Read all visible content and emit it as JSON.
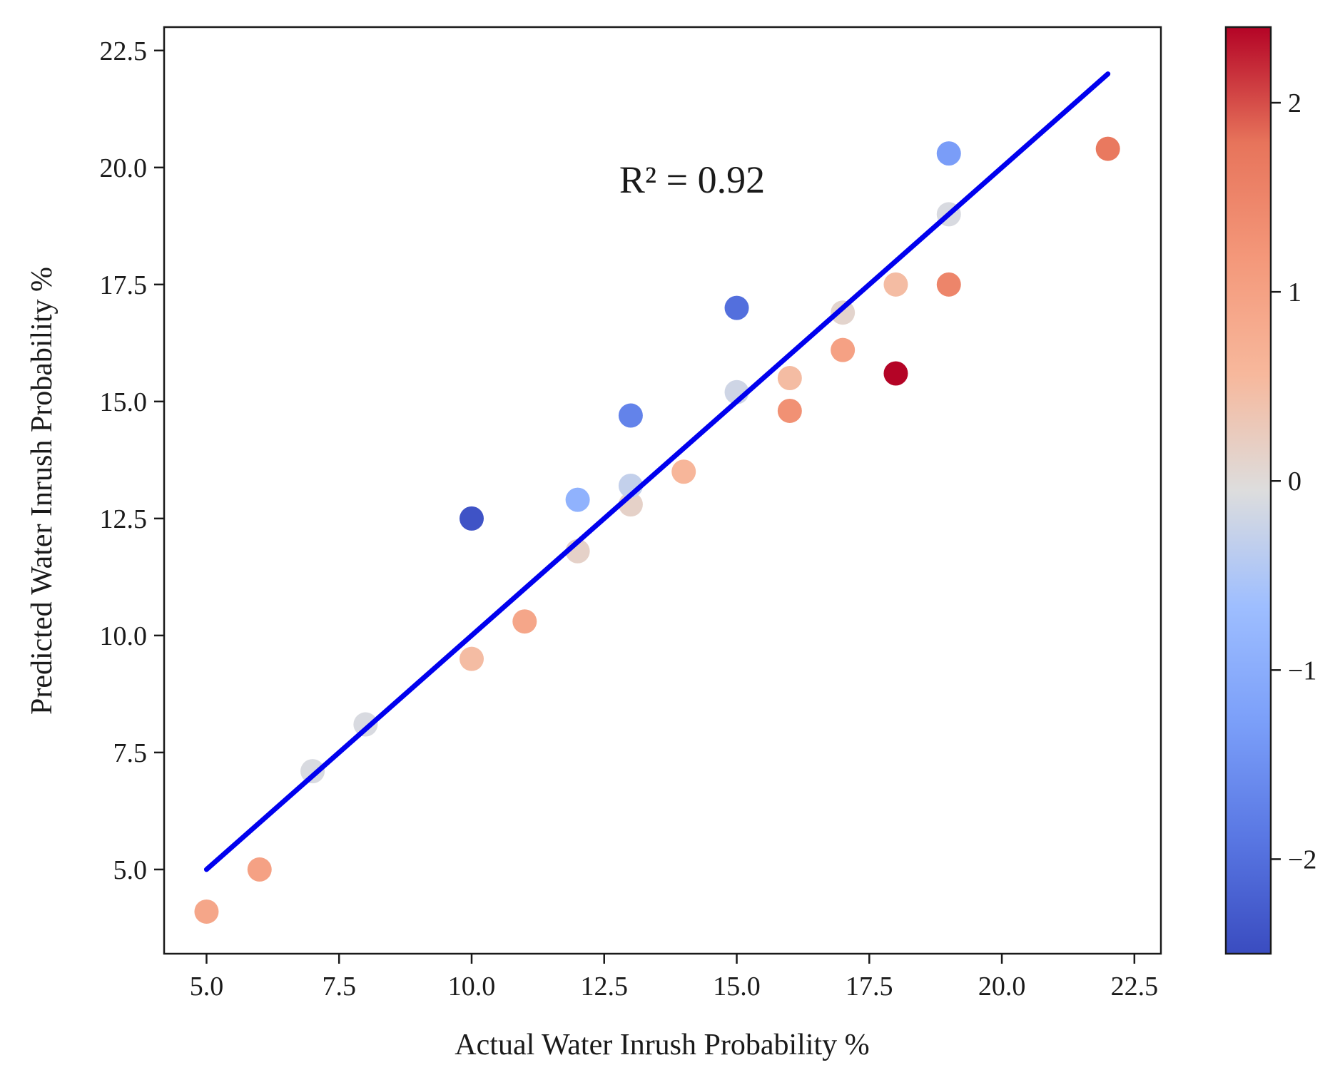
{
  "chart_data": {
    "type": "scatter",
    "title": "",
    "xlabel": "Actual Water Inrush Probability %",
    "ylabel": "Predicted Water Inrush Probability %",
    "xlim": [
      4.2,
      23.0
    ],
    "ylim": [
      3.2,
      23.0
    ],
    "xticks": [
      5.0,
      7.5,
      10.0,
      12.5,
      15.0,
      17.5,
      20.0,
      22.5
    ],
    "yticks": [
      5.0,
      7.5,
      10.0,
      12.5,
      15.0,
      17.5,
      20.0,
      22.5
    ],
    "xtick_labels": [
      "5.0",
      "7.5",
      "10.0",
      "12.5",
      "15.0",
      "17.5",
      "20.0",
      "22.5"
    ],
    "ytick_labels": [
      "5.0",
      "7.5",
      "10.0",
      "12.5",
      "15.0",
      "17.5",
      "20.0",
      "22.5"
    ],
    "grid": false,
    "annotation": "R² = 0.92",
    "fit_line": {
      "color": "#0000ee",
      "x": [
        5.0,
        22.0
      ],
      "y": [
        5.0,
        22.0
      ]
    },
    "points": [
      {
        "x": 5,
        "y": 4.1,
        "c": 0.9
      },
      {
        "x": 6,
        "y": 5.0,
        "c": 1.0
      },
      {
        "x": 7,
        "y": 7.1,
        "c": -0.1
      },
      {
        "x": 8,
        "y": 8.1,
        "c": -0.1
      },
      {
        "x": 10,
        "y": 9.5,
        "c": 0.5
      },
      {
        "x": 10,
        "y": 12.5,
        "c": -2.4
      },
      {
        "x": 11,
        "y": 10.3,
        "c": 0.9
      },
      {
        "x": 12,
        "y": 11.8,
        "c": 0.15
      },
      {
        "x": 12,
        "y": 12.9,
        "c": -0.9
      },
      {
        "x": 13,
        "y": 12.8,
        "c": 0.15
      },
      {
        "x": 13,
        "y": 13.2,
        "c": -0.3
      },
      {
        "x": 13,
        "y": 14.7,
        "c": -1.7
      },
      {
        "x": 14,
        "y": 13.5,
        "c": 0.6
      },
      {
        "x": 15,
        "y": 15.2,
        "c": -0.2
      },
      {
        "x": 15,
        "y": 17.0,
        "c": -2.0
      },
      {
        "x": 16,
        "y": 15.5,
        "c": 0.5
      },
      {
        "x": 16,
        "y": 14.8,
        "c": 1.3
      },
      {
        "x": 17,
        "y": 16.9,
        "c": 0.1
      },
      {
        "x": 17,
        "y": 16.1,
        "c": 1.0
      },
      {
        "x": 18,
        "y": 17.5,
        "c": 0.5
      },
      {
        "x": 18,
        "y": 15.6,
        "c": 2.4
      },
      {
        "x": 19,
        "y": 19.0,
        "c": -0.1
      },
      {
        "x": 19,
        "y": 17.5,
        "c": 1.5
      },
      {
        "x": 19,
        "y": 20.3,
        "c": -1.3
      },
      {
        "x": 22,
        "y": 20.4,
        "c": 1.7
      }
    ],
    "colorbar": {
      "colormap": "coolwarm",
      "range": [
        -2.5,
        2.4
      ],
      "ticks": [
        -2,
        -1,
        0,
        1,
        2
      ],
      "tick_labels": [
        "−2",
        "−1",
        "0",
        "1",
        "2"
      ],
      "low_color": "#3a4cc0",
      "mid_color": "#dddddd",
      "high_color": "#b40426"
    }
  }
}
